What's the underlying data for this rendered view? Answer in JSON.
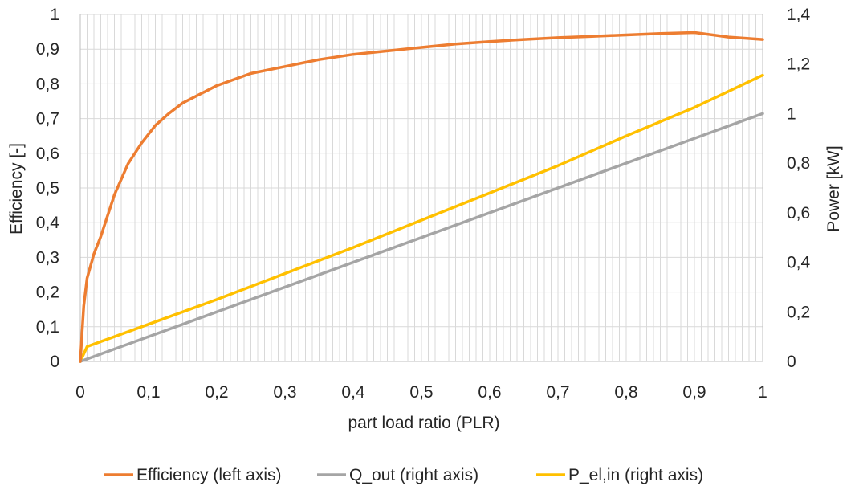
{
  "chart_data": {
    "type": "line",
    "xlabel": "part load ratio (PLR)",
    "ylabel_left": "Efficiency [-]",
    "ylabel_right": "Power [kW]",
    "xlim": [
      0,
      1
    ],
    "ylim_left": [
      0,
      1
    ],
    "ylim_right": [
      0,
      1.4
    ],
    "x_ticks": [
      "0",
      "0,1",
      "0,2",
      "0,3",
      "0,4",
      "0,5",
      "0,6",
      "0,7",
      "0,8",
      "0,9",
      "1"
    ],
    "y_left_ticks": [
      "0",
      "0,1",
      "0,2",
      "0,3",
      "0,4",
      "0,5",
      "0,6",
      "0,7",
      "0,8",
      "0,9",
      "1"
    ],
    "y_right_ticks": [
      "0",
      "0,2",
      "0,4",
      "0,6",
      "0,8",
      "1",
      "1,2",
      "1,4"
    ],
    "grid": true,
    "legend_position": "bottom",
    "series": [
      {
        "name": "Efficiency (left axis)",
        "axis": "left",
        "color": "#ED7D31",
        "x": [
          0,
          0.005,
          0.01,
          0.02,
          0.03,
          0.05,
          0.07,
          0.09,
          0.11,
          0.13,
          0.15,
          0.2,
          0.25,
          0.3,
          0.35,
          0.4,
          0.45,
          0.5,
          0.55,
          0.6,
          0.65,
          0.7,
          0.75,
          0.8,
          0.85,
          0.9,
          0.95,
          1.0
        ],
        "y": [
          0,
          0.16,
          0.24,
          0.31,
          0.36,
          0.48,
          0.57,
          0.63,
          0.68,
          0.715,
          0.745,
          0.795,
          0.83,
          0.85,
          0.87,
          0.885,
          0.895,
          0.905,
          0.915,
          0.922,
          0.928,
          0.933,
          0.937,
          0.941,
          0.945,
          0.948,
          0.935,
          0.928
        ]
      },
      {
        "name": "Q_out (right axis)",
        "axis": "right",
        "color": "#A5A5A5",
        "x": [
          0,
          1.0
        ],
        "y": [
          0,
          1.0
        ]
      },
      {
        "name": "P_el,in (right axis)",
        "axis": "right",
        "color": "#FFC000",
        "x": [
          0,
          0.01,
          0.05,
          0.1,
          0.2,
          0.3,
          0.4,
          0.5,
          0.6,
          0.7,
          0.8,
          0.9,
          1.0
        ],
        "y": [
          0,
          0.06,
          0.1,
          0.15,
          0.25,
          0.355,
          0.46,
          0.57,
          0.68,
          0.79,
          0.91,
          1.025,
          1.155
        ]
      }
    ]
  }
}
